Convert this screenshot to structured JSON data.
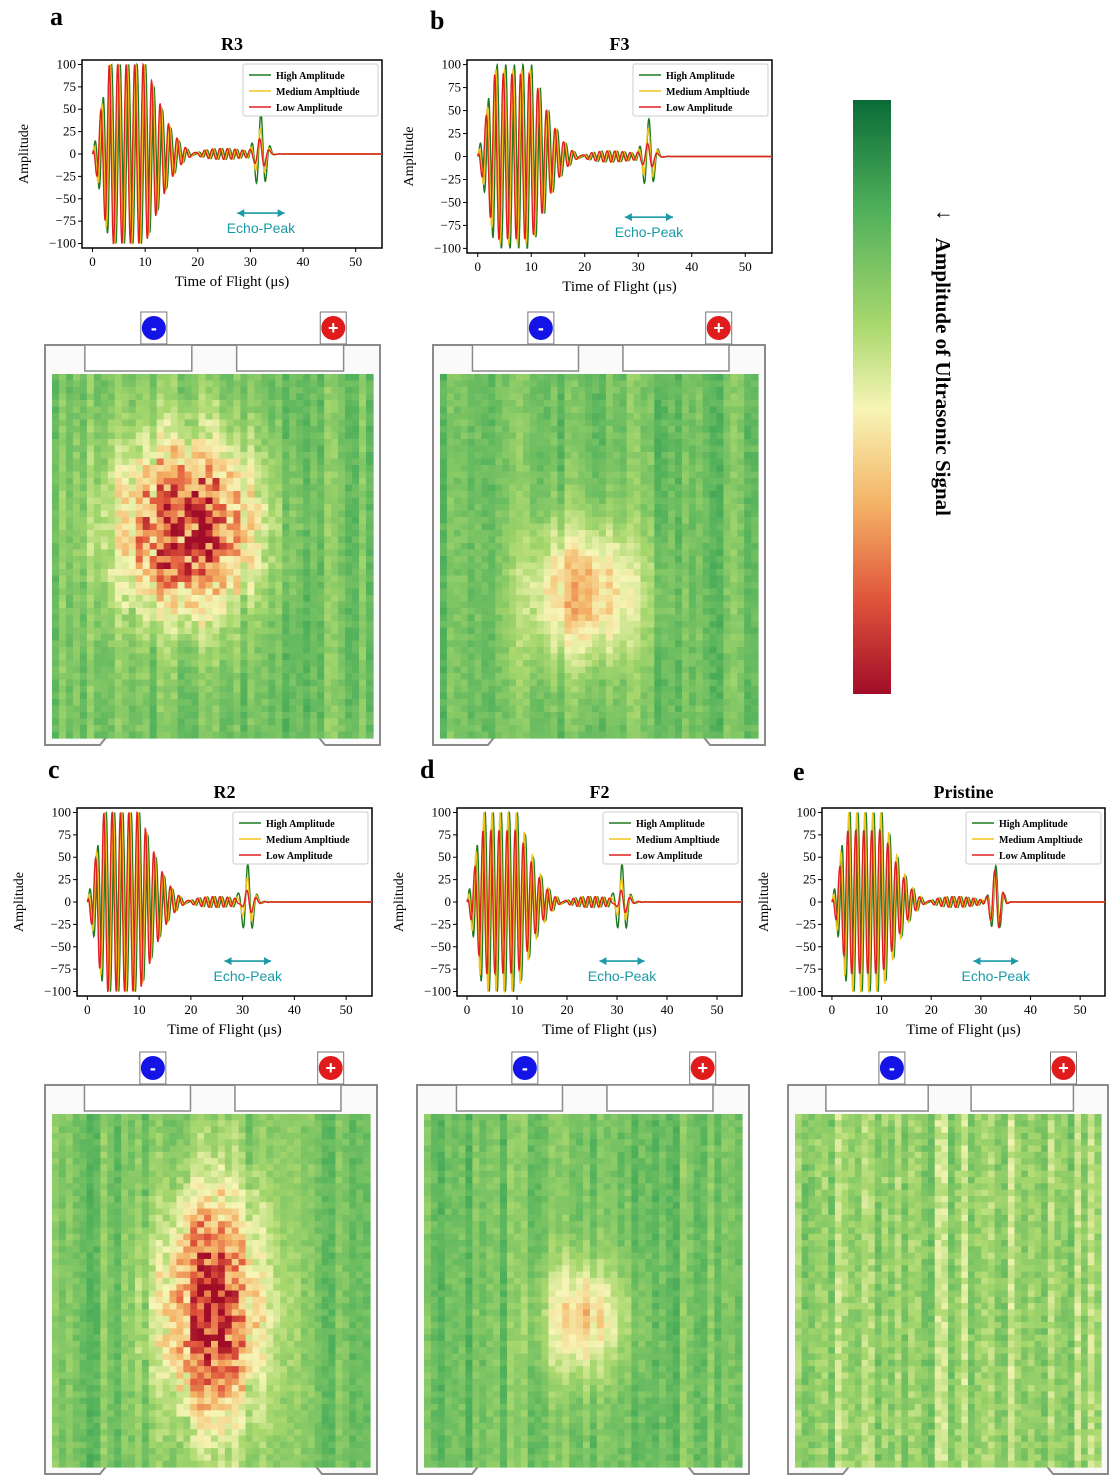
{
  "panels": [
    {
      "letter": "a",
      "title": "R3"
    },
    {
      "letter": "b",
      "title": "F3"
    },
    {
      "letter": "c",
      "title": "R2"
    },
    {
      "letter": "d",
      "title": "F2"
    },
    {
      "letter": "e",
      "title": "Pristine"
    }
  ],
  "colorbar": {
    "title": "Amplitude of Ultrasonic Signal",
    "arrow": "↑",
    "colors": [
      "#0b6b38",
      "#4daf5a",
      "#a9d86e",
      "#f7f5b6",
      "#f4b366",
      "#e0553b",
      "#a10d28"
    ]
  },
  "terminals": {
    "negative": "-",
    "positive": "+",
    "negative_color": "#1414e6",
    "positive_color": "#e01b1b"
  },
  "chart_data": [
    {
      "type": "line",
      "title": "R3",
      "xlabel": "Time of Flight (μs)",
      "ylabel": "Amplitude",
      "xlim": [
        -2,
        55
      ],
      "ylim": [
        -105,
        105
      ],
      "xticks": [
        0,
        10,
        20,
        30,
        40,
        50
      ],
      "yticks": [
        100,
        75,
        50,
        25,
        0,
        -25,
        -50,
        -75,
        -100
      ],
      "legend_position": "top-right",
      "annotation": "Echo-Peak",
      "echo_peak_x": 32,
      "series": [
        {
          "name": "High Amplitude",
          "color": "#1e7a1e",
          "peak": 100,
          "echo_amp": 45
        },
        {
          "name": "Medium Ampltiude",
          "color": "#f0c419",
          "peak": 100,
          "echo_amp": 28
        },
        {
          "name": "Low Amplitude",
          "color": "#e02020",
          "peak": 100,
          "echo_amp": 18
        }
      ]
    },
    {
      "type": "line",
      "title": "F3",
      "xlabel": "Time of Flight (μs)",
      "ylabel": "Amplitude",
      "xlim": [
        -2,
        55
      ],
      "ylim": [
        -105,
        105
      ],
      "xticks": [
        0,
        10,
        20,
        30,
        40,
        50
      ],
      "yticks": [
        100,
        75,
        50,
        25,
        0,
        -25,
        -50,
        -75,
        -100
      ],
      "legend_position": "top-right",
      "annotation": "Echo-Peak",
      "echo_peak_x": 32,
      "series": [
        {
          "name": "High Amplitude",
          "color": "#1e7a1e",
          "peak": 100,
          "echo_amp": 40
        },
        {
          "name": "Medium Ampltiude",
          "color": "#f0c419",
          "peak": 95,
          "echo_amp": 30
        },
        {
          "name": "Low Amplitude",
          "color": "#e02020",
          "peak": 90,
          "echo_amp": 15
        }
      ]
    },
    {
      "type": "line",
      "title": "R2",
      "xlabel": "Time of Flight (μs)",
      "ylabel": "Amplitude",
      "xlim": [
        -2,
        55
      ],
      "ylim": [
        -105,
        105
      ],
      "xticks": [
        0,
        10,
        20,
        30,
        40,
        50
      ],
      "yticks": [
        100,
        75,
        50,
        25,
        0,
        -25,
        -50,
        -75,
        -100
      ],
      "legend_position": "top-right",
      "annotation": "Echo-Peak",
      "echo_peak_x": 31,
      "series": [
        {
          "name": "High Amplitude",
          "color": "#1e7a1e",
          "peak": 100,
          "echo_amp": 45
        },
        {
          "name": "Medium Ampltiude",
          "color": "#f0c419",
          "peak": 100,
          "echo_amp": 30
        },
        {
          "name": "Low Amplitude",
          "color": "#e02020",
          "peak": 100,
          "echo_amp": 15
        }
      ]
    },
    {
      "type": "line",
      "title": "F2",
      "xlabel": "Time of Flight (μs)",
      "ylabel": "Amplitude",
      "xlim": [
        -2,
        55
      ],
      "ylim": [
        -105,
        105
      ],
      "xticks": [
        0,
        10,
        20,
        30,
        40,
        50
      ],
      "yticks": [
        100,
        75,
        50,
        25,
        0,
        -25,
        -50,
        -75,
        -100
      ],
      "legend_position": "top-right",
      "annotation": "Echo-Peak",
      "echo_peak_x": 31,
      "series": [
        {
          "name": "High Amplitude",
          "color": "#1e7a1e",
          "peak": 100,
          "echo_amp": 45
        },
        {
          "name": "Medium Ampltiude",
          "color": "#f0c419",
          "peak": 100,
          "echo_amp": 28
        },
        {
          "name": "Low Amplitude",
          "color": "#e02020",
          "peak": 80,
          "echo_amp": 15
        }
      ]
    },
    {
      "type": "line",
      "title": "Pristine",
      "xlabel": "Time of Flight (μs)",
      "ylabel": "Amplitude",
      "xlim": [
        -2,
        55
      ],
      "ylim": [
        -105,
        105
      ],
      "xticks": [
        0,
        10,
        20,
        30,
        40,
        50
      ],
      "yticks": [
        100,
        75,
        50,
        25,
        0,
        -25,
        -50,
        -75,
        -100
      ],
      "legend_position": "top-right",
      "annotation": "Echo-Peak",
      "echo_peak_x": 33,
      "series": [
        {
          "name": "High Amplitude",
          "color": "#1e7a1e",
          "peak": 100,
          "echo_amp": 40
        },
        {
          "name": "Medium Ampltiude",
          "color": "#f0c419",
          "peak": 100,
          "echo_amp": 30
        },
        {
          "name": "Low Amplitude",
          "color": "#e02020",
          "peak": 80,
          "echo_amp": 35
        }
      ]
    }
  ]
}
